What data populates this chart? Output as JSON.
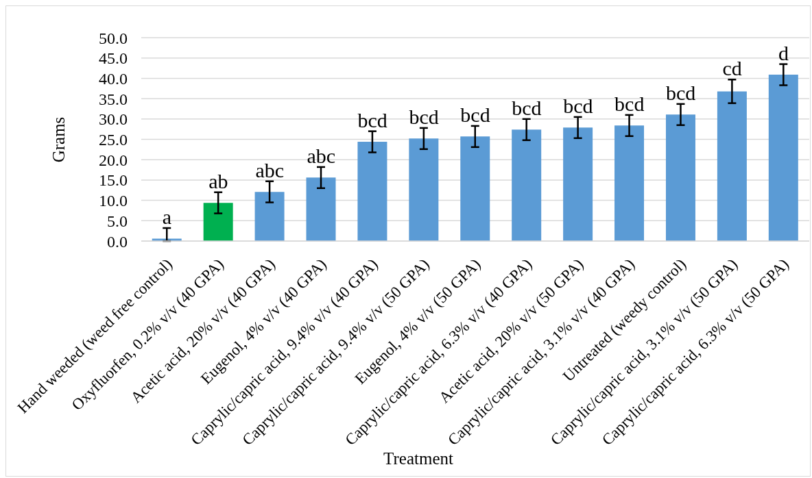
{
  "chart_data": {
    "type": "bar",
    "xlabel": "Treatment",
    "ylabel": "Grams",
    "categories": [
      "Hand weeded (weed free control)",
      "Oxyfluorfen, 0.2% v/v (40 GPA)",
      "Acetic acid, 20% v/v (40 GPA)",
      "Eugenol, 4% v/v (40 GPA)",
      "Caprylic/capric acid, 9.4% v/v (40 GPA)",
      "Caprylic/capric acid, 9.4% v/v (50 GPA)",
      "Eugenol, 4% v/v (50 GPA)",
      "Caprylic/capric acid, 6.3% v/v (40 GPA)",
      "Acetic acid, 20% v/v (50 GPA)",
      "Caprylic/capric acid, 3.1% v/v (40 GPA)",
      "Untreated (weedy control)",
      "Caprylic/capric acid, 3.1% v/v (50 GPA)",
      "Caprylic/capric acid, 6.3% v/v (50 GPA)"
    ],
    "values": [
      0.6,
      9.4,
      12.1,
      15.6,
      24.4,
      25.2,
      25.7,
      27.4,
      27.9,
      28.4,
      31.1,
      36.8,
      40.9
    ],
    "colors": [
      "#5b9bd5",
      "#00b050",
      "#5b9bd5",
      "#5b9bd5",
      "#5b9bd5",
      "#5b9bd5",
      "#5b9bd5",
      "#5b9bd5",
      "#5b9bd5",
      "#5b9bd5",
      "#5b9bd5",
      "#5b9bd5",
      "#5b9bd5"
    ],
    "errors": [
      [
        0,
        3.2
      ],
      2.6,
      2.6,
      2.6,
      2.6,
      2.6,
      2.6,
      2.6,
      2.6,
      2.6,
      2.6,
      2.9,
      2.6
    ],
    "value_labels": [
      "a",
      "ab",
      "abc",
      "abc",
      "bcd",
      "bcd",
      "bcd",
      "bcd",
      "bcd",
      "bcd",
      "bcd",
      "cd",
      "d"
    ],
    "ylim": [
      0,
      50
    ],
    "yticks": [
      {
        "value": 0,
        "label": "0.0"
      },
      {
        "value": 5,
        "label": "5.0"
      },
      {
        "value": 10,
        "label": "10.0"
      },
      {
        "value": 15,
        "label": "15.0"
      },
      {
        "value": 20,
        "label": "20.0"
      },
      {
        "value": 25,
        "label": "25.0"
      },
      {
        "value": 30,
        "label": "30.0"
      },
      {
        "value": 35,
        "label": "35.0"
      },
      {
        "value": 40,
        "label": "40.0"
      },
      {
        "value": 45,
        "label": "45.0"
      },
      {
        "value": 50,
        "label": "50.0"
      }
    ],
    "grid": "y"
  }
}
